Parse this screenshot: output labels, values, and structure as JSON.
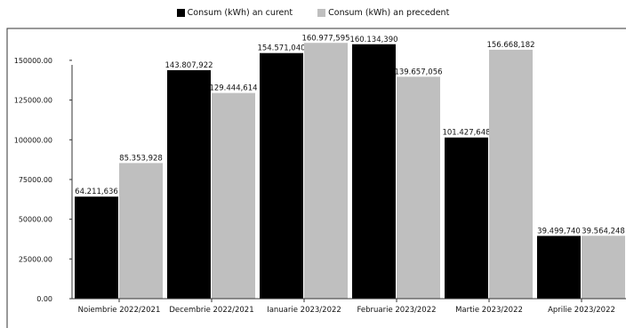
{
  "chart_data": {
    "type": "bar",
    "categories": [
      "Noiembrie 2022/2021",
      "Decembrie 2022/2021",
      "Ianuarie 2023/2022",
      "Februarie 2023/2022",
      "Martie 2023/2022",
      "Aprilie 2023/2022"
    ],
    "series": [
      {
        "name": "Consum (kWh) an curent",
        "color": "#000000",
        "values": [
          64211.636,
          143807.922,
          154571.04,
          160134.39,
          101427.648,
          39499.74
        ],
        "labels": [
          "64.211,636",
          "143.807,922",
          "154.571,040",
          "160.134,390",
          "101.427,648",
          "39.499,740"
        ]
      },
      {
        "name": "Consum (kWh) an precedent",
        "color": "#bfbfbf",
        "values": [
          85353.928,
          129444.614,
          160977.595,
          139657.056,
          156668.182,
          39564.248
        ],
        "labels": [
          "85.353,928",
          "129.444,614",
          "160.977,595",
          "139.657,056",
          "156.668,182",
          "39.564,248"
        ]
      }
    ],
    "ylim": [
      0,
      160000
    ],
    "yticks": [
      {
        "value": 0,
        "label": "0.00"
      },
      {
        "value": 25000,
        "label": "25000.00"
      },
      {
        "value": 50000,
        "label": "50000.00"
      },
      {
        "value": 75000,
        "label": "75000.00"
      },
      {
        "value": 100000,
        "label": "100000.00"
      },
      {
        "value": 125000,
        "label": "125000.00"
      },
      {
        "value": 150000,
        "label": "150000.00"
      }
    ],
    "grid": false,
    "legend_position": "top-center",
    "title": "",
    "xlabel": "",
    "ylabel": ""
  }
}
